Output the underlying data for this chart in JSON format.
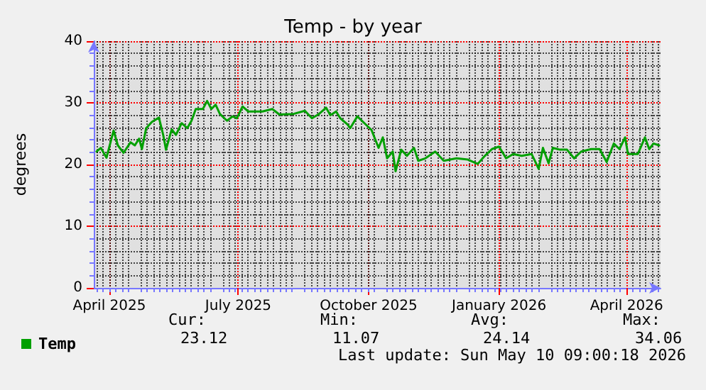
{
  "chart_data": {
    "type": "line",
    "title": "Temp - by year",
    "ylabel": "degrees",
    "x": [
      "2025-03-23",
      "2025-03-26",
      "2025-03-30",
      "2025-04-04",
      "2025-04-07",
      "2025-04-11",
      "2025-04-16",
      "2025-04-19",
      "2025-04-22",
      "2025-04-24",
      "2025-04-27",
      "2025-05-01",
      "2025-05-06",
      "2025-05-09",
      "2025-05-11",
      "2025-05-15",
      "2025-05-18",
      "2025-05-22",
      "2025-05-26",
      "2025-05-29",
      "2025-06-01",
      "2025-06-06",
      "2025-06-09",
      "2025-06-12",
      "2025-06-15",
      "2025-06-18",
      "2025-06-23",
      "2025-06-27",
      "2025-06-30",
      "2025-07-04",
      "2025-07-08",
      "2025-07-13",
      "2025-07-18",
      "2025-07-25",
      "2025-07-30",
      "2025-08-09",
      "2025-08-17",
      "2025-08-22",
      "2025-08-27",
      "2025-09-01",
      "2025-09-04",
      "2025-09-08",
      "2025-09-11",
      "2025-09-16",
      "2025-09-18",
      "2025-09-23",
      "2025-09-28",
      "2025-10-03",
      "2025-10-08",
      "2025-10-11",
      "2025-10-14",
      "2025-10-18",
      "2025-10-20",
      "2025-10-24",
      "2025-10-28",
      "2025-11-02",
      "2025-11-05",
      "2025-11-10",
      "2025-11-17",
      "2025-11-23",
      "2025-12-02",
      "2025-12-10",
      "2025-12-17",
      "2025-12-22",
      "2025-12-27",
      "2026-01-01",
      "2026-01-06",
      "2026-01-11",
      "2026-01-17",
      "2026-01-24",
      "2026-01-29",
      "2026-02-01",
      "2026-02-05",
      "2026-02-08",
      "2026-02-13",
      "2026-02-18",
      "2026-02-23",
      "2026-02-28",
      "2026-03-07",
      "2026-03-13",
      "2026-03-18",
      "2026-03-23",
      "2026-03-27",
      "2026-03-31",
      "2026-04-02",
      "2026-04-09",
      "2026-04-14",
      "2026-04-17",
      "2026-04-20",
      "2026-04-24"
    ],
    "series": [
      {
        "name": "Temp",
        "color": "#00a000",
        "values": [
          22.1,
          22.7,
          21.1,
          25.5,
          23.1,
          21.9,
          23.6,
          23.1,
          24.2,
          22.5,
          25.9,
          26.9,
          27.6,
          24.8,
          22.4,
          25.7,
          24.8,
          26.7,
          25.9,
          27.1,
          29.0,
          29.0,
          30.3,
          29.0,
          29.7,
          28.2,
          27.1,
          27.8,
          27.5,
          29.4,
          28.6,
          28.6,
          28.6,
          29.0,
          28.1,
          28.2,
          28.7,
          27.5,
          28.2,
          29.2,
          28.0,
          28.6,
          27.5,
          26.5,
          25.9,
          27.8,
          26.7,
          25.6,
          22.7,
          24.4,
          21.0,
          22.1,
          18.9,
          22.4,
          21.4,
          22.7,
          20.6,
          21.0,
          22.1,
          20.6,
          21.0,
          20.8,
          20.1,
          21.4,
          22.5,
          22.9,
          21.0,
          21.7,
          21.4,
          21.7,
          19.3,
          22.7,
          20.2,
          22.7,
          22.4,
          22.4,
          21.0,
          22.1,
          22.5,
          22.5,
          20.4,
          23.4,
          22.5,
          24.4,
          21.7,
          21.7,
          24.4,
          22.5,
          23.4,
          23.1
        ]
      }
    ],
    "xlim": [
      "2025-03-21",
      "2026-04-25"
    ],
    "xticks": [
      {
        "value": "2025-04-01",
        "label": "April 2025"
      },
      {
        "value": "2025-07-01",
        "label": "July 2025"
      },
      {
        "value": "2025-10-01",
        "label": "October 2025"
      },
      {
        "value": "2026-01-01",
        "label": "January 2026"
      },
      {
        "value": "2026-04-01",
        "label": "April 2026"
      }
    ],
    "ylim": [
      0,
      40
    ],
    "yticks": [
      0,
      10,
      20,
      30,
      40
    ],
    "grid": true,
    "legend": "bottom left",
    "marker": "none",
    "line_style": "solid",
    "annotations": [
      "Cur:",
      "23.12",
      "Min:",
      "11.07",
      "Avg:",
      "24.14",
      "Max:",
      "34.06",
      "Last update: Sun May 10 09:00:18 2026"
    ]
  }
}
